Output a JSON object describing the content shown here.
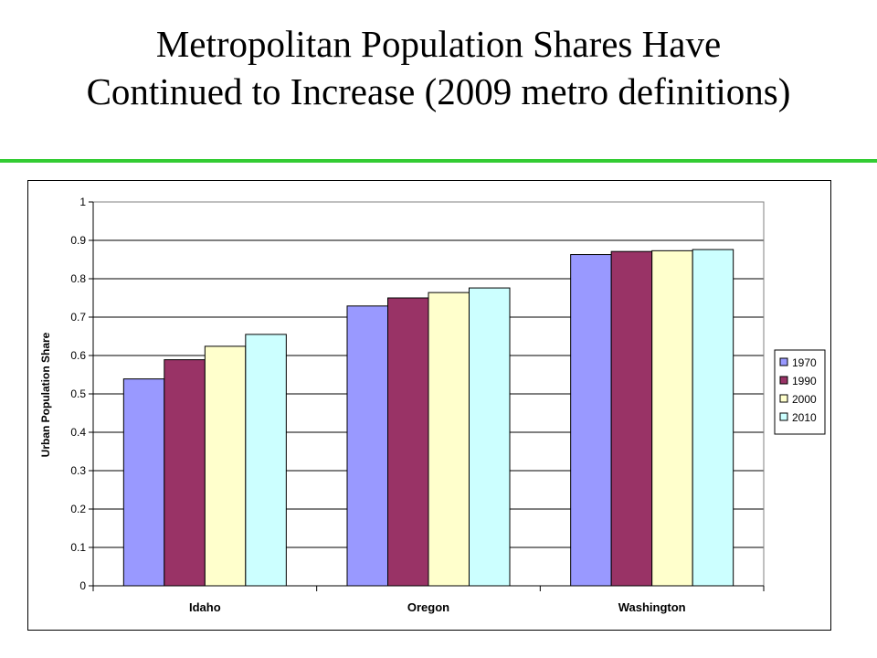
{
  "slide": {
    "title_line1": "Metropolitan Population Shares Have",
    "title_line2": "Continued to Increase  (2009 metro definitions)",
    "rule_color": "#33cc33"
  },
  "chart_data": {
    "type": "bar",
    "categories": [
      "Idaho",
      "Oregon",
      "Washington"
    ],
    "series": [
      {
        "name": "1970",
        "color": "#9999ff",
        "values": [
          0.539,
          0.729,
          0.863
        ]
      },
      {
        "name": "1990",
        "color": "#993366",
        "values": [
          0.589,
          0.75,
          0.871
        ]
      },
      {
        "name": "2000",
        "color": "#ffffcc",
        "values": [
          0.624,
          0.764,
          0.873
        ]
      },
      {
        "name": "2010",
        "color": "#ccffff",
        "values": [
          0.655,
          0.776,
          0.876
        ]
      }
    ],
    "ylabel": "Urban Population Share",
    "xlabel": "",
    "ylim": [
      0,
      1
    ],
    "yticks": [
      "0",
      "0.1",
      "0.2",
      "0.3",
      "0.4",
      "0.5",
      "0.6",
      "0.7",
      "0.8",
      "0.9",
      "1"
    ],
    "grid": true,
    "legend": "right"
  }
}
